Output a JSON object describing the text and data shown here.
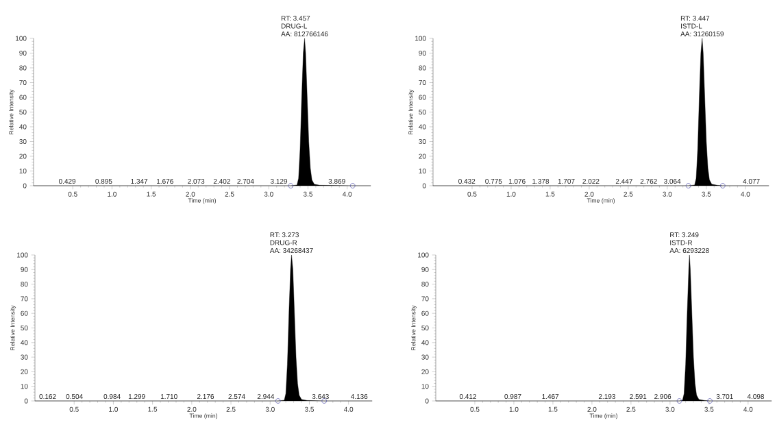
{
  "chart_data": [
    {
      "type": "area",
      "xlabel": "Time (min)",
      "ylabel": "Relative Intensity",
      "xlim": [
        0,
        4.3
      ],
      "ylim": [
        0,
        100
      ],
      "xticks": [
        0.5,
        {
          "value": 1,
          "label": "1.0"
        },
        1.5,
        {
          "value": 2,
          "label": "2.0"
        },
        2.5,
        {
          "value": 3,
          "label": "3.0"
        },
        3.5,
        {
          "value": 4,
          "label": "4.0"
        }
      ],
      "yticks": [
        0,
        10,
        20,
        30,
        40,
        50,
        60,
        70,
        80,
        90,
        100
      ],
      "series": [
        {
          "color": "#000000",
          "x": [
            0,
            3.28,
            3.36,
            3.38,
            3.4,
            3.42,
            3.44,
            3.457,
            3.47,
            3.49,
            3.51,
            3.53,
            3.55,
            3.58,
            3.65,
            4.07,
            4.3
          ],
          "values": [
            0,
            0,
            0.5,
            5,
            25,
            60,
            90,
            100,
            90,
            60,
            30,
            12,
            4,
            1,
            0.3,
            0,
            0
          ]
        },
        {
          "type": "scatter",
          "marker": "circle",
          "color": "#4a4aa8",
          "x": [
            3.28,
            4.07
          ],
          "values": [
            0,
            0
          ]
        }
      ],
      "annotations": [
        {
          "text": "RT: 3.457",
          "x": 3.457,
          "y": 100
        },
        {
          "text": "DRUG-L",
          "x": 3.457,
          "y": 100
        },
        {
          "text": "AA: 812766146",
          "x": 3.457,
          "y": 100
        },
        {
          "text": "0.429",
          "x": 0.429,
          "y": 0
        },
        {
          "text": "0.895",
          "x": 0.895,
          "y": 0
        },
        {
          "text": "1.347",
          "x": 1.347,
          "y": 0
        },
        {
          "text": "1.676",
          "x": 1.676,
          "y": 0
        },
        {
          "text": "2.073",
          "x": 2.073,
          "y": 0
        },
        {
          "text": "2.402",
          "x": 2.402,
          "y": 0
        },
        {
          "text": "2.704",
          "x": 2.704,
          "y": 0
        },
        {
          "text": "3.129",
          "x": 3.129,
          "y": 0
        },
        {
          "text": "3.869",
          "x": 3.869,
          "y": 0
        }
      ]
    },
    {
      "type": "area",
      "xlabel": "Time (min)",
      "ylabel": "Relative Intensity",
      "xlim": [
        0,
        4.3
      ],
      "ylim": [
        0,
        100
      ],
      "xticks": [
        0.5,
        {
          "value": 1,
          "label": "1.0"
        },
        1.5,
        {
          "value": 2,
          "label": "2.0"
        },
        2.5,
        {
          "value": 3,
          "label": "3.0"
        },
        3.5,
        {
          "value": 4,
          "label": "4.0"
        }
      ],
      "yticks": [
        0,
        10,
        20,
        30,
        40,
        50,
        60,
        70,
        80,
        90,
        100
      ],
      "series": [
        {
          "color": "#000000",
          "x": [
            0,
            3.27,
            3.35,
            3.37,
            3.39,
            3.41,
            3.43,
            3.447,
            3.46,
            3.48,
            3.5,
            3.52,
            3.54,
            3.57,
            3.64,
            3.71,
            4.3
          ],
          "values": [
            0,
            0,
            0.5,
            5,
            25,
            60,
            90,
            100,
            90,
            60,
            30,
            12,
            4,
            1,
            0.3,
            0,
            0
          ]
        },
        {
          "type": "scatter",
          "marker": "circle",
          "color": "#4a4aa8",
          "x": [
            3.27,
            3.71
          ],
          "values": [
            0,
            0
          ]
        }
      ],
      "annotations": [
        {
          "text": "RT: 3.447",
          "x": 3.447,
          "y": 100
        },
        {
          "text": "ISTD-L",
          "x": 3.447,
          "y": 100
        },
        {
          "text": "AA: 31260159",
          "x": 3.447,
          "y": 100
        },
        {
          "text": "0.432",
          "x": 0.432,
          "y": 0
        },
        {
          "text": "0.775",
          "x": 0.775,
          "y": 0
        },
        {
          "text": "1.076",
          "x": 1.076,
          "y": 0
        },
        {
          "text": "1.378",
          "x": 1.378,
          "y": 0
        },
        {
          "text": "1.707",
          "x": 1.707,
          "y": 0
        },
        {
          "text": "2.022",
          "x": 2.022,
          "y": 0
        },
        {
          "text": "2.447",
          "x": 2.447,
          "y": 0
        },
        {
          "text": "2.762",
          "x": 2.762,
          "y": 0
        },
        {
          "text": "3.064",
          "x": 3.064,
          "y": 0
        },
        {
          "text": "4.077",
          "x": 4.077,
          "y": 0
        }
      ]
    },
    {
      "type": "area",
      "xlabel": "Time (min)",
      "ylabel": "Relative Intensity",
      "xlim": [
        0,
        4.3
      ],
      "ylim": [
        0,
        100
      ],
      "xticks": [
        0.5,
        {
          "value": 1,
          "label": "1.0"
        },
        1.5,
        {
          "value": 2,
          "label": "2.0"
        },
        2.5,
        {
          "value": 3,
          "label": "3.0"
        },
        3.5,
        {
          "value": 4,
          "label": "4.0"
        }
      ],
      "yticks": [
        0,
        10,
        20,
        30,
        40,
        50,
        60,
        70,
        80,
        90,
        100
      ],
      "series": [
        {
          "color": "#000000",
          "x": [
            0,
            3.1,
            3.18,
            3.2,
            3.22,
            3.24,
            3.26,
            3.273,
            3.29,
            3.31,
            3.33,
            3.35,
            3.37,
            3.4,
            3.47,
            3.69,
            4.3
          ],
          "values": [
            0,
            0,
            0.5,
            5,
            25,
            60,
            90,
            100,
            90,
            60,
            30,
            12,
            4,
            1,
            0.3,
            0,
            0
          ]
        },
        {
          "type": "scatter",
          "marker": "circle",
          "color": "#4a4aa8",
          "x": [
            3.1,
            3.69
          ],
          "values": [
            0,
            0
          ]
        }
      ],
      "annotations": [
        {
          "text": "RT: 3.273",
          "x": 3.273,
          "y": 100
        },
        {
          "text": "DRUG-R",
          "x": 3.273,
          "y": 100
        },
        {
          "text": "AA: 34268437",
          "x": 3.273,
          "y": 100
        },
        {
          "text": "0.162",
          "x": 0.162,
          "y": 0
        },
        {
          "text": "0.504",
          "x": 0.504,
          "y": 0
        },
        {
          "text": "0.984",
          "x": 0.984,
          "y": 0
        },
        {
          "text": "1.299",
          "x": 1.299,
          "y": 0
        },
        {
          "text": "1.710",
          "x": 1.71,
          "y": 0
        },
        {
          "text": "2.176",
          "x": 2.176,
          "y": 0
        },
        {
          "text": "2.574",
          "x": 2.574,
          "y": 0
        },
        {
          "text": "2.944",
          "x": 2.944,
          "y": 0
        },
        {
          "text": "3.643",
          "x": 3.643,
          "y": 0
        },
        {
          "text": "4.136",
          "x": 4.136,
          "y": 0
        }
      ]
    },
    {
      "type": "area",
      "xlabel": "Time (min)",
      "ylabel": "Relative Intensity",
      "xlim": [
        0,
        4.3
      ],
      "ylim": [
        0,
        100
      ],
      "xticks": [
        0.5,
        {
          "value": 1,
          "label": "1.0"
        },
        1.5,
        {
          "value": 2,
          "label": "2.0"
        },
        2.5,
        {
          "value": 3,
          "label": "3.0"
        },
        3.5,
        {
          "value": 4,
          "label": "4.0"
        }
      ],
      "yticks": [
        0,
        10,
        20,
        30,
        40,
        50,
        60,
        70,
        80,
        90,
        100
      ],
      "series": [
        {
          "color": "#000000",
          "x": [
            0,
            3.12,
            3.16,
            3.18,
            3.2,
            3.22,
            3.24,
            3.249,
            3.26,
            3.28,
            3.3,
            3.32,
            3.34,
            3.37,
            3.44,
            3.51,
            4.3
          ],
          "values": [
            0,
            0,
            0.5,
            5,
            25,
            60,
            90,
            100,
            90,
            60,
            30,
            12,
            4,
            1,
            0.3,
            0,
            0
          ]
        },
        {
          "type": "scatter",
          "marker": "circle",
          "color": "#4a4aa8",
          "x": [
            3.12,
            3.51
          ],
          "values": [
            0,
            0
          ]
        }
      ],
      "annotations": [
        {
          "text": "RT: 3.249",
          "x": 3.249,
          "y": 100
        },
        {
          "text": "ISTD-R",
          "x": 3.249,
          "y": 100
        },
        {
          "text": "AA: 6293228",
          "x": 3.249,
          "y": 100
        },
        {
          "text": "0.412",
          "x": 0.412,
          "y": 0
        },
        {
          "text": "0.987",
          "x": 0.987,
          "y": 0
        },
        {
          "text": "1.467",
          "x": 1.467,
          "y": 0
        },
        {
          "text": "2.193",
          "x": 2.193,
          "y": 0
        },
        {
          "text": "2.591",
          "x": 2.591,
          "y": 0
        },
        {
          "text": "2.906",
          "x": 2.906,
          "y": 0
        },
        {
          "text": "3.701",
          "x": 3.701,
          "y": 0
        },
        {
          "text": "4.098",
          "x": 4.098,
          "y": 0
        }
      ]
    }
  ]
}
